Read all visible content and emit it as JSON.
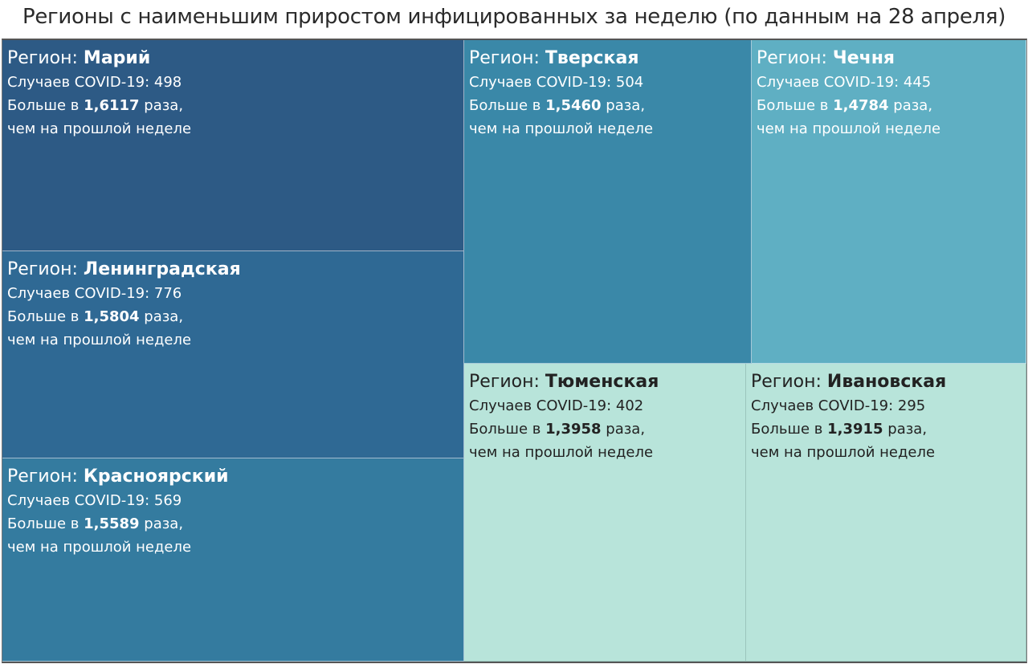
{
  "title": "Регионы с наименьшим приростом инфицированных за неделю (по данным на 28 апреля)",
  "labels": {
    "region_prefix": "Регион: ",
    "cases_prefix": "Случаев COVID-19: ",
    "ratio_prefix": "Больше в ",
    "ratio_suffix": " раза,",
    "last_week": "чем на прошлой неделе"
  },
  "colors": {
    "darkest": "#2d5a85",
    "dark": "#2f6994",
    "mid_dark": "#347b9f",
    "mid": "#3a88a8",
    "teal": "#5fafc3",
    "light": "#b8e4da"
  },
  "chart_data": {
    "type": "treemap",
    "title": "Регионы с наименьшим приростом инфицированных за неделю (по данным на 28 апреля)",
    "items": [
      {
        "region": "Марий",
        "cases": "498",
        "ratio": "1,6117",
        "color": "#2d5a85"
      },
      {
        "region": "Ленинградская",
        "cases": "776",
        "ratio": "1,5804",
        "color": "#2f6994"
      },
      {
        "region": "Красноярский",
        "cases": "569",
        "ratio": "1,5589",
        "color": "#347b9f"
      },
      {
        "region": "Тверская",
        "cases": "504",
        "ratio": "1,5460",
        "color": "#3a88a8"
      },
      {
        "region": "Чечня",
        "cases": "445",
        "ratio": "1,4784",
        "color": "#5fafc3"
      },
      {
        "region": "Тюменская",
        "cases": "402",
        "ratio": "1,3958",
        "color": "#b8e4da"
      },
      {
        "region": "Ивановская",
        "cases": "295",
        "ratio": "1,3915",
        "color": "#b8e4da"
      }
    ]
  }
}
